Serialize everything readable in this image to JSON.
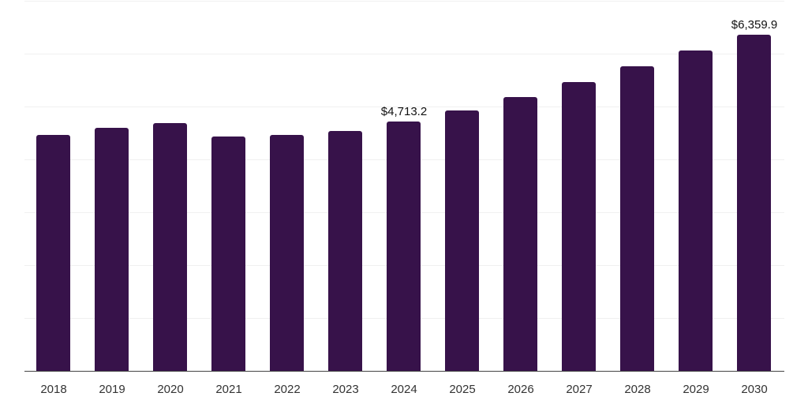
{
  "chart_data": {
    "type": "bar",
    "title": "",
    "xlabel": "",
    "ylabel": "",
    "categories": [
      "2018",
      "2019",
      "2020",
      "2021",
      "2022",
      "2023",
      "2024",
      "2025",
      "2026",
      "2027",
      "2028",
      "2029",
      "2030"
    ],
    "values": [
      4458,
      4592,
      4681,
      4428,
      4458,
      4533,
      4713.2,
      4920,
      5174,
      5457,
      5755,
      6053,
      6359.9
    ],
    "data_labels": [
      {
        "index": 6,
        "text": "$4,713.2"
      },
      {
        "index": 12,
        "text": "$6,359.9"
      }
    ],
    "ylim": [
      0,
      7000
    ],
    "grid": true,
    "legend": null,
    "bar_color": "#37124a"
  }
}
